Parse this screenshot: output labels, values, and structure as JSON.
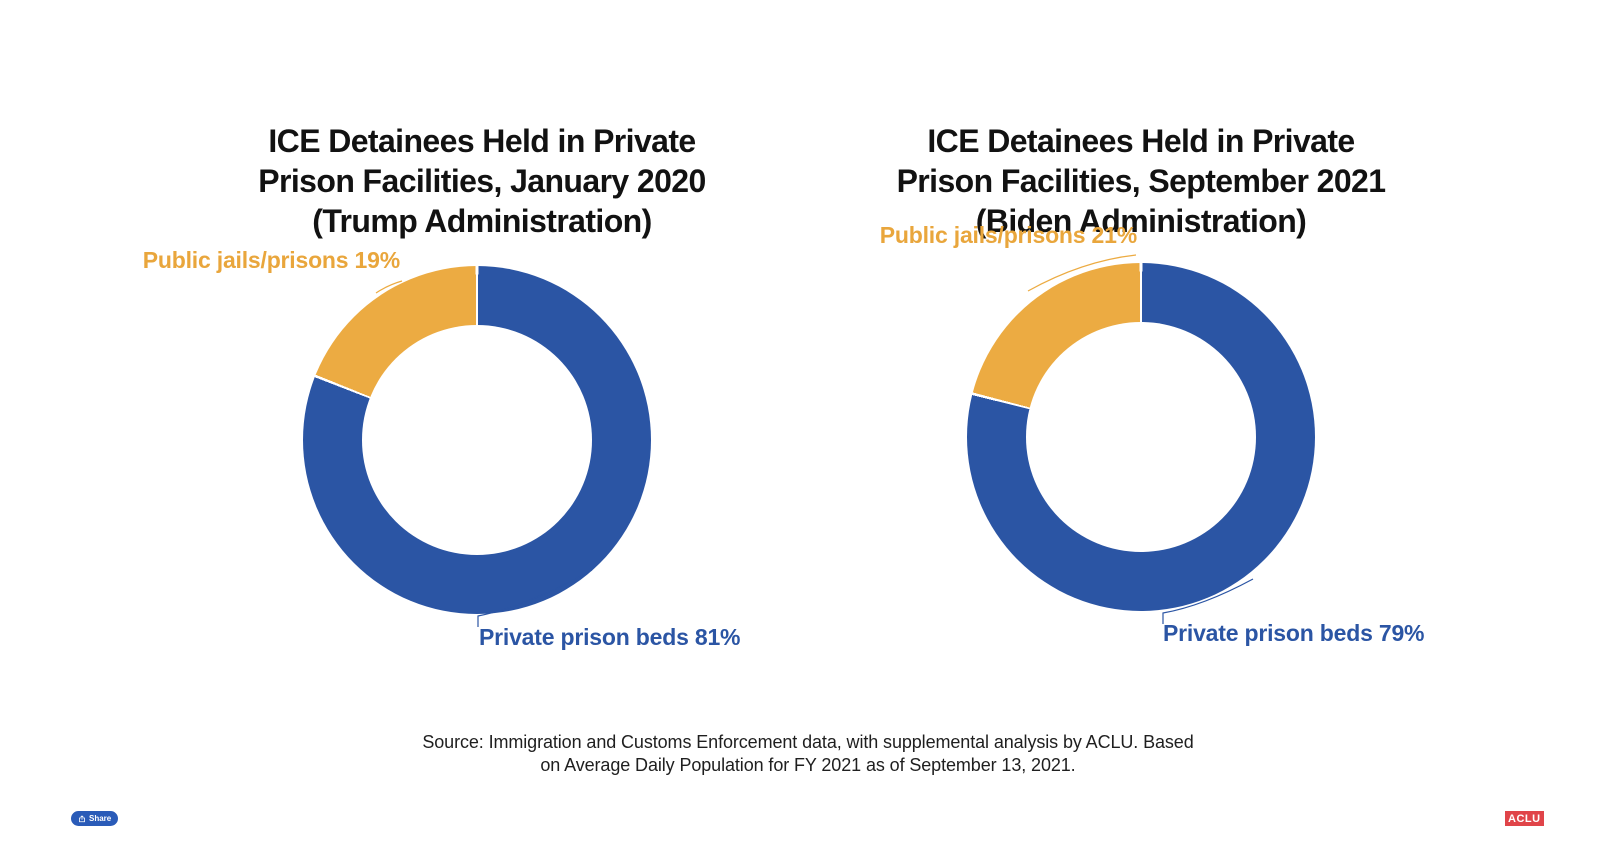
{
  "colors": {
    "blue": "#2B55A4",
    "orange": "#ECAB42",
    "orange_text": "#E9A63C",
    "title": "#121212",
    "source_text": "#1f1f1f",
    "share_bg": "#2A5BB8",
    "aclu_red": "#E04449"
  },
  "charts": [
    {
      "title": "ICE Detainees Held in Private\nPrison Facilities, January 2020\n(Trump Administration)",
      "callout_public": "Public jails/prisons 19%",
      "callout_private": "Private prison beds 81%"
    },
    {
      "title": "ICE Detainees Held in Private\nPrison Facilities, September 2021\n(Biden Administration)",
      "callout_public": "Public jails/prisons 21%",
      "callout_private": "Private prison beds 79%"
    }
  ],
  "chart_data": [
    {
      "type": "pie",
      "subtype": "donut",
      "title": "ICE Detainees Held in Private Prison Facilities, January 2020 (Trump Administration)",
      "slices": [
        {
          "label": "Private prison beds",
          "value": 81,
          "color": "#2B55A4"
        },
        {
          "label": "Public jails/prisons",
          "value": 19,
          "color": "#ECAB42"
        }
      ],
      "start_angle_deg": 0,
      "direction": "clockwise",
      "inner_radius_ratio": 0.66,
      "legend_position": "callout-labels"
    },
    {
      "type": "pie",
      "subtype": "donut",
      "title": "ICE Detainees Held in Private Prison Facilities, September 2021 (Biden Administration)",
      "slices": [
        {
          "label": "Private prison beds",
          "value": 79,
          "color": "#2B55A4"
        },
        {
          "label": "Public jails/prisons",
          "value": 21,
          "color": "#ECAB42"
        }
      ],
      "start_angle_deg": 0,
      "direction": "clockwise",
      "inner_radius_ratio": 0.66,
      "legend_position": "callout-labels"
    }
  ],
  "source": "Source: Immigration and Customs Enforcement data, with supplemental analysis by ACLU. Based\non Average Daily Population for FY 2021 as of September 13, 2021.",
  "share_button": {
    "label": "Share"
  },
  "aclu_logo": {
    "text": "ACLU"
  }
}
